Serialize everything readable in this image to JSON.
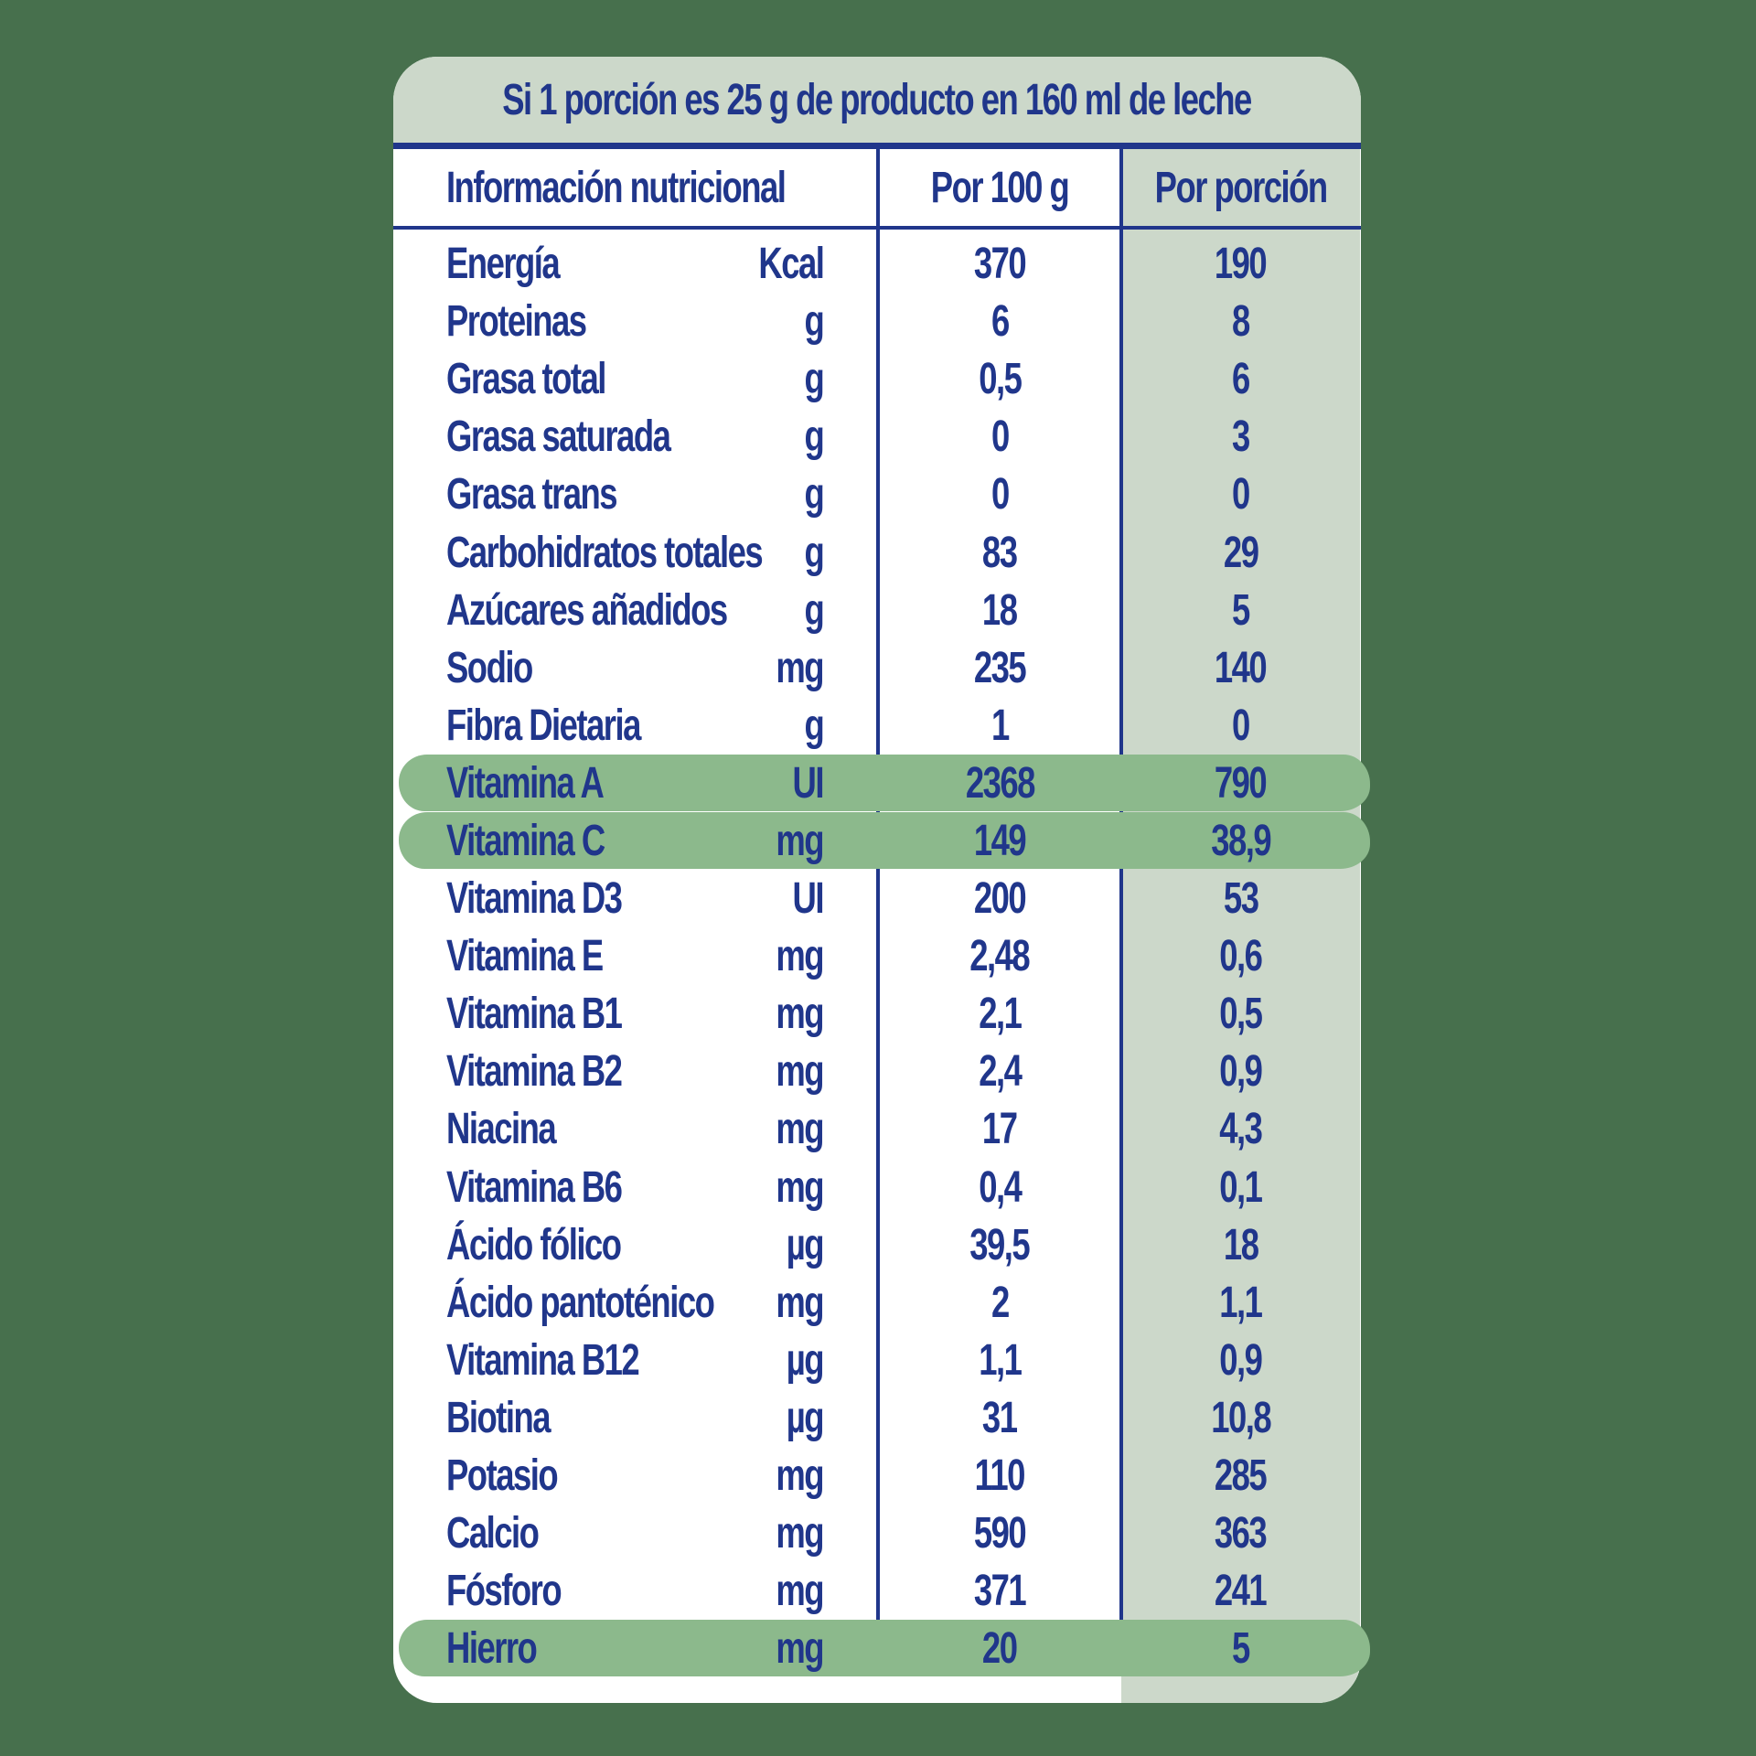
{
  "title": "Si 1 porción es 25 g de producto en 160 ml de leche",
  "table": {
    "headers": {
      "info": "Información nutricional",
      "per100": "Por 100 g",
      "perPortion": "Por porción"
    },
    "rows": [
      {
        "name": "Energía",
        "unit": "Kcal",
        "per100": "370",
        "portion": "190",
        "highlighted": false
      },
      {
        "name": "Proteinas",
        "unit": "g",
        "per100": "6",
        "portion": "8",
        "highlighted": false
      },
      {
        "name": "Grasa total",
        "unit": "g",
        "per100": "0,5",
        "portion": "6",
        "highlighted": false
      },
      {
        "name": "Grasa saturada",
        "unit": "g",
        "per100": "0",
        "portion": "3",
        "highlighted": false
      },
      {
        "name": "Grasa trans",
        "unit": "g",
        "per100": "0",
        "portion": "0",
        "highlighted": false
      },
      {
        "name": "Carbohidratos totales",
        "unit": "g",
        "per100": "83",
        "portion": "29",
        "highlighted": false
      },
      {
        "name": "Azúcares añadidos",
        "unit": "g",
        "per100": "18",
        "portion": "5",
        "highlighted": false
      },
      {
        "name": "Sodio",
        "unit": "mg",
        "per100": "235",
        "portion": "140",
        "highlighted": false
      },
      {
        "name": "Fibra Dietaria",
        "unit": "g",
        "per100": "1",
        "portion": "0",
        "highlighted": false
      },
      {
        "name": "Vitamina A",
        "unit": "UI",
        "per100": "2368",
        "portion": "790",
        "highlighted": true
      },
      {
        "name": "Vitamina C",
        "unit": "mg",
        "per100": "149",
        "portion": "38,9",
        "highlighted": true
      },
      {
        "name": "Vitamina D3",
        "unit": "UI",
        "per100": "200",
        "portion": "53",
        "highlighted": false
      },
      {
        "name": "Vitamina E",
        "unit": "mg",
        "per100": "2,48",
        "portion": "0,6",
        "highlighted": false
      },
      {
        "name": "Vitamina B1",
        "unit": "mg",
        "per100": "2,1",
        "portion": "0,5",
        "highlighted": false
      },
      {
        "name": "Vitamina B2",
        "unit": "mg",
        "per100": "2,4",
        "portion": "0,9",
        "highlighted": false
      },
      {
        "name": "Niacina",
        "unit": "mg",
        "per100": "17",
        "portion": "4,3",
        "highlighted": false
      },
      {
        "name": "Vitamina B6",
        "unit": "mg",
        "per100": "0,4",
        "portion": "0,1",
        "highlighted": false
      },
      {
        "name": "Ácido fólico",
        "unit": "µg",
        "per100": "39,5",
        "portion": "18",
        "highlighted": false
      },
      {
        "name": "Ácido pantoténico",
        "unit": "mg",
        "per100": "2",
        "portion": "1,1",
        "highlighted": false
      },
      {
        "name": "Vitamina B12",
        "unit": "µg",
        "per100": "1,1",
        "portion": "0,9",
        "highlighted": false
      },
      {
        "name": "Biotina",
        "unit": "µg",
        "per100": "31",
        "portion": "10,8",
        "highlighted": false
      },
      {
        "name": "Potasio",
        "unit": "mg",
        "per100": "110",
        "portion": "285",
        "highlighted": false
      },
      {
        "name": "Calcio",
        "unit": "mg",
        "per100": "590",
        "portion": "363",
        "highlighted": false
      },
      {
        "name": "Fósforo",
        "unit": "mg",
        "per100": "371",
        "portion": "241",
        "highlighted": false
      },
      {
        "name": "Hierro",
        "unit": "mg",
        "per100": "20",
        "portion": "5",
        "highlighted": true
      }
    ]
  },
  "colors": {
    "background_green": "#47704d",
    "band_sage": "#ccd8ca",
    "highlight_pill_green": "#8cb98c",
    "navy_text": "#20368b",
    "card_white": "#ffffff"
  }
}
